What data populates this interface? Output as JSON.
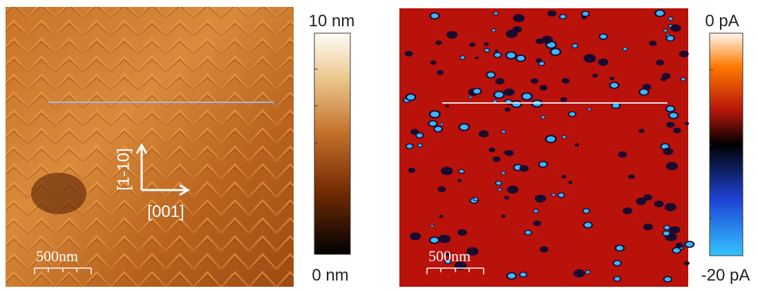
{
  "panels": [
    {
      "colorbar": {
        "top_label": "10 nm",
        "bottom_label": "0 nm"
      },
      "scale_bar": "500nm",
      "annotations": {
        "vertical_direction": "[1-10]",
        "horizontal_direction": "[001]"
      }
    },
    {
      "colorbar": {
        "top_label": "0 pA",
        "bottom_label": "-20 pA"
      },
      "scale_bar": "500nm"
    }
  ]
}
